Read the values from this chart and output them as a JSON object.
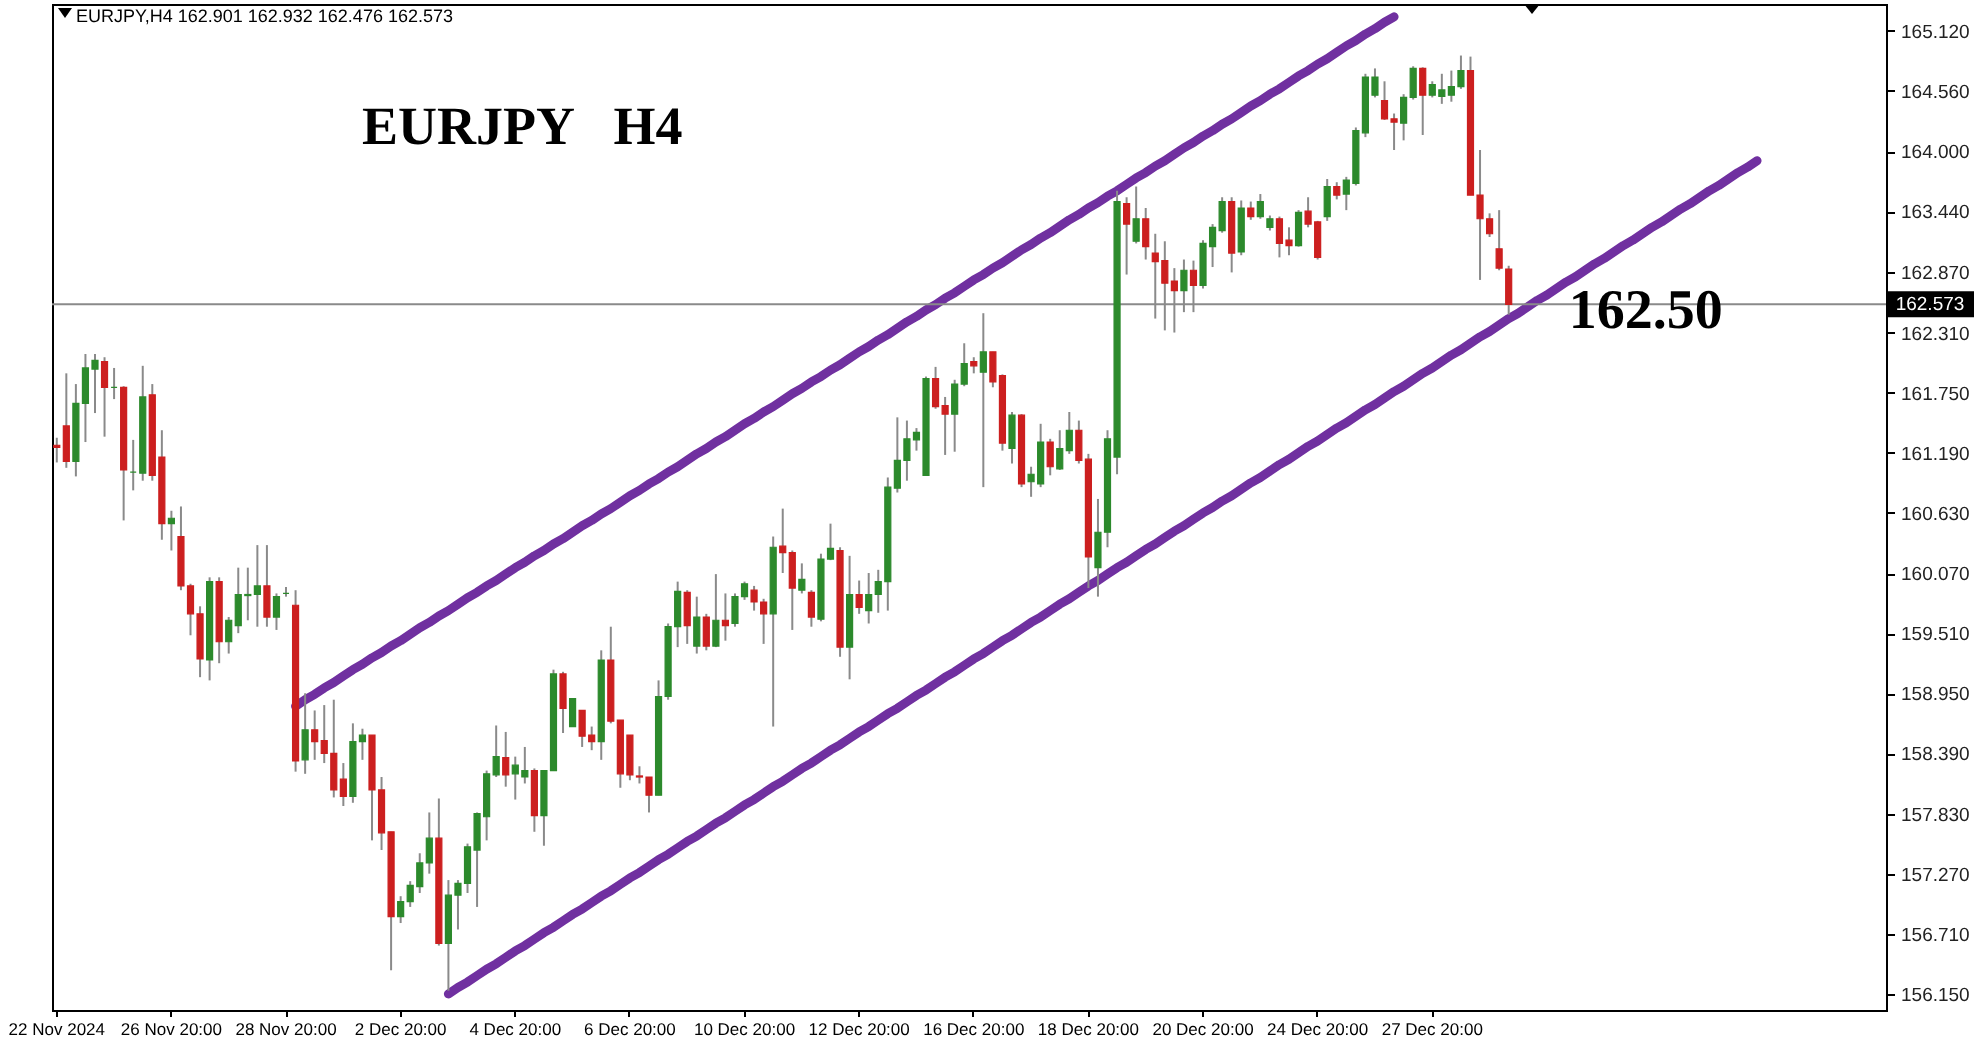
{
  "chart_data": {
    "type": "candlestick",
    "title": "EURJPY   H4",
    "annotations": [
      "EURJPY,H4 162.901 162.932 162.476 162.573",
      {
        "text": "162.50",
        "y": 162.5
      }
    ],
    "categories": [
      "22 Nov 2024",
      null,
      null,
      null,
      null,
      null,
      null,
      null,
      null,
      null,
      null,
      null,
      "26 Nov 20:00",
      null,
      null,
      null,
      null,
      null,
      null,
      null,
      null,
      null,
      null,
      null,
      "28 Nov 20:00",
      null,
      null,
      null,
      null,
      null,
      null,
      null,
      null,
      null,
      null,
      null,
      "2 Dec 20:00",
      null,
      null,
      null,
      null,
      null,
      null,
      null,
      null,
      null,
      null,
      null,
      "4 Dec 20:00",
      null,
      null,
      null,
      null,
      null,
      null,
      null,
      null,
      null,
      null,
      null,
      "6 Dec 20:00",
      null,
      null,
      null,
      null,
      null,
      null,
      null,
      null,
      null,
      null,
      null,
      "10 Dec 20:00",
      null,
      null,
      null,
      null,
      null,
      null,
      null,
      null,
      null,
      null,
      null,
      "12 Dec 20:00",
      null,
      null,
      null,
      null,
      null,
      null,
      null,
      null,
      null,
      null,
      null,
      "16 Dec 20:00",
      null,
      null,
      null,
      null,
      null,
      null,
      null,
      null,
      null,
      null,
      null,
      "18 Dec 20:00",
      null,
      null,
      null,
      null,
      null,
      null,
      null,
      null,
      null,
      null,
      null,
      "20 Dec 20:00",
      null,
      null,
      null,
      null,
      null,
      null,
      null,
      null,
      null,
      null,
      null,
      "24 Dec 20:00",
      null,
      null,
      null,
      null,
      null,
      null,
      null,
      null,
      null,
      null,
      null,
      "27 Dec 20:00",
      null,
      null,
      null,
      null,
      null,
      null,
      null,
      null,
      null,
      null,
      null,
      null,
      null,
      null,
      null,
      null,
      null,
      null,
      null,
      null,
      null,
      null,
      null,
      null,
      null,
      null,
      null,
      null,
      null,
      null,
      null,
      null,
      null,
      null,
      null,
      null,
      null,
      null,
      null,
      null,
      null,
      null,
      null,
      null,
      null,
      null,
      null
    ],
    "ohlc": [
      [
        161.26,
        161.33,
        161.1,
        161.24
      ],
      [
        161.44,
        161.93,
        161.05,
        161.11
      ],
      [
        161.11,
        161.83,
        160.97,
        161.65
      ],
      [
        161.65,
        162.11,
        161.29,
        161.98
      ],
      [
        161.97,
        162.11,
        161.56,
        162.05
      ],
      [
        162.04,
        162.08,
        161.34,
        161.8
      ],
      [
        161.8,
        161.98,
        161.69,
        161.8
      ],
      [
        161.8,
        161.81,
        160.56,
        161.03
      ],
      [
        161.01,
        161.31,
        160.84,
        161.01
      ],
      [
        161.0,
        162.0,
        160.93,
        161.71
      ],
      [
        161.73,
        161.83,
        160.93,
        160.98
      ],
      [
        161.15,
        161.4,
        160.38,
        160.53
      ],
      [
        160.53,
        160.65,
        160.28,
        160.58
      ],
      [
        160.41,
        160.69,
        159.91,
        159.95
      ],
      [
        159.95,
        159.97,
        159.49,
        159.69
      ],
      [
        159.69,
        159.76,
        159.1,
        159.27
      ],
      [
        159.26,
        160.03,
        159.07,
        159.99
      ],
      [
        159.99,
        160.03,
        159.23,
        159.43
      ],
      [
        159.43,
        159.66,
        159.32,
        159.63
      ],
      [
        159.58,
        160.12,
        159.51,
        159.87
      ],
      [
        159.86,
        160.12,
        159.63,
        159.87
      ],
      [
        159.87,
        160.33,
        159.57,
        159.95
      ],
      [
        159.95,
        160.33,
        159.57,
        159.66
      ],
      [
        159.66,
        159.88,
        159.54,
        159.85
      ],
      [
        159.88,
        159.94,
        159.85,
        159.88
      ],
      [
        159.77,
        159.91,
        158.22,
        158.32
      ],
      [
        158.33,
        158.95,
        158.2,
        158.61
      ],
      [
        158.61,
        158.79,
        158.33,
        158.5
      ],
      [
        158.51,
        158.84,
        158.3,
        158.39
      ],
      [
        158.39,
        158.89,
        157.98,
        158.05
      ],
      [
        158.15,
        158.3,
        157.9,
        157.99
      ],
      [
        157.99,
        158.67,
        157.93,
        158.5
      ],
      [
        158.5,
        158.62,
        158.33,
        158.56
      ],
      [
        158.56,
        158.56,
        157.58,
        158.05
      ],
      [
        158.05,
        158.17,
        157.49,
        157.65
      ],
      [
        157.66,
        157.66,
        156.37,
        156.87
      ],
      [
        156.87,
        157.06,
        156.81,
        157.01
      ],
      [
        157.01,
        157.2,
        156.96,
        157.16
      ],
      [
        157.15,
        157.46,
        157.09,
        157.37
      ],
      [
        157.37,
        157.84,
        157.27,
        157.6
      ],
      [
        157.6,
        157.97,
        156.6,
        156.62
      ],
      [
        156.62,
        157.21,
        156.18,
        157.07
      ],
      [
        157.07,
        157.21,
        156.75,
        157.18
      ],
      [
        157.18,
        157.55,
        157.09,
        157.52
      ],
      [
        157.49,
        157.84,
        156.96,
        157.83
      ],
      [
        157.8,
        158.23,
        157.58,
        158.2
      ],
      [
        158.19,
        158.65,
        158.17,
        158.36
      ],
      [
        158.35,
        158.59,
        158.08,
        158.19
      ],
      [
        158.2,
        158.36,
        157.96,
        158.28
      ],
      [
        158.17,
        158.45,
        158.11,
        158.23
      ],
      [
        158.23,
        158.25,
        157.66,
        157.81
      ],
      [
        157.81,
        158.23,
        157.53,
        158.23
      ],
      [
        158.23,
        159.17,
        158.23,
        159.13
      ],
      [
        159.13,
        159.15,
        158.58,
        158.81
      ],
      [
        158.64,
        158.9,
        158.64,
        158.9
      ],
      [
        158.79,
        158.79,
        158.45,
        158.55
      ],
      [
        158.56,
        158.64,
        158.42,
        158.5
      ],
      [
        158.5,
        159.35,
        158.33,
        159.26
      ],
      [
        159.26,
        159.57,
        158.67,
        158.69
      ],
      [
        158.7,
        158.7,
        158.07,
        158.2
      ],
      [
        158.56,
        158.56,
        158.14,
        158.19
      ],
      [
        158.18,
        158.27,
        158.11,
        158.17
      ],
      [
        158.17,
        158.17,
        157.84,
        158.0
      ],
      [
        158.0,
        159.07,
        158.0,
        158.92
      ],
      [
        158.92,
        159.6,
        158.89,
        159.57
      ],
      [
        159.57,
        159.99,
        159.38,
        159.9
      ],
      [
        159.89,
        159.91,
        159.41,
        159.58
      ],
      [
        159.39,
        159.85,
        159.32,
        159.66
      ],
      [
        159.66,
        159.69,
        159.35,
        159.39
      ],
      [
        159.39,
        160.06,
        159.38,
        159.63
      ],
      [
        159.63,
        159.88,
        159.44,
        159.58
      ],
      [
        159.6,
        159.88,
        159.57,
        159.85
      ],
      [
        159.85,
        159.99,
        159.82,
        159.97
      ],
      [
        159.91,
        159.95,
        159.72,
        159.8
      ],
      [
        159.8,
        159.83,
        159.41,
        159.69
      ],
      [
        159.69,
        160.41,
        158.64,
        160.31
      ],
      [
        160.32,
        160.67,
        160.07,
        160.26
      ],
      [
        160.26,
        160.28,
        159.54,
        159.93
      ],
      [
        159.91,
        160.16,
        159.88,
        160.01
      ],
      [
        159.89,
        159.91,
        159.57,
        159.66
      ],
      [
        159.64,
        160.25,
        159.62,
        160.2
      ],
      [
        160.2,
        160.53,
        160.19,
        160.3
      ],
      [
        160.28,
        160.31,
        159.29,
        159.38
      ],
      [
        159.38,
        160.23,
        159.08,
        159.87
      ],
      [
        159.87,
        160.0,
        159.69,
        159.75
      ],
      [
        159.72,
        160.07,
        159.6,
        159.87
      ],
      [
        159.87,
        160.1,
        159.7,
        159.99
      ],
      [
        159.99,
        160.96,
        159.72,
        160.87
      ],
      [
        160.86,
        161.52,
        160.82,
        161.12
      ],
      [
        161.12,
        161.49,
        160.93,
        161.32
      ],
      [
        161.31,
        161.42,
        161.21,
        161.38
      ],
      [
        160.98,
        161.9,
        160.98,
        161.88
      ],
      [
        161.88,
        161.99,
        161.6,
        161.62
      ],
      [
        161.63,
        161.71,
        161.17,
        161.55
      ],
      [
        161.55,
        161.87,
        161.2,
        161.83
      ],
      [
        161.83,
        162.21,
        161.81,
        162.02
      ],
      [
        162.04,
        162.08,
        161.93,
        162.0
      ],
      [
        161.94,
        162.49,
        160.87,
        162.13
      ],
      [
        162.13,
        162.13,
        161.8,
        161.85
      ],
      [
        161.91,
        161.92,
        161.21,
        161.28
      ],
      [
        161.23,
        161.57,
        161.09,
        161.54
      ],
      [
        161.54,
        161.55,
        160.87,
        160.9
      ],
      [
        160.92,
        161.06,
        160.78,
        160.99
      ],
      [
        160.9,
        161.46,
        160.87,
        161.29
      ],
      [
        161.29,
        161.32,
        160.98,
        161.06
      ],
      [
        161.04,
        161.4,
        161.03,
        161.23
      ],
      [
        161.21,
        161.57,
        161.18,
        161.4
      ],
      [
        161.4,
        161.49,
        161.09,
        161.12
      ],
      [
        161.13,
        161.18,
        159.93,
        160.22
      ],
      [
        160.12,
        160.76,
        159.85,
        160.45
      ],
      [
        160.45,
        161.4,
        160.31,
        161.32
      ],
      [
        161.15,
        163.63,
        160.99,
        163.53
      ],
      [
        163.51,
        163.57,
        162.85,
        163.32
      ],
      [
        163.16,
        163.67,
        163.14,
        163.37
      ],
      [
        163.37,
        163.47,
        162.99,
        163.11
      ],
      [
        163.05,
        163.23,
        162.44,
        162.97
      ],
      [
        162.98,
        163.16,
        162.33,
        162.77
      ],
      [
        162.79,
        162.91,
        162.31,
        162.7
      ],
      [
        162.7,
        162.99,
        162.5,
        162.89
      ],
      [
        162.89,
        162.98,
        162.5,
        162.75
      ],
      [
        162.75,
        163.17,
        162.72,
        163.14
      ],
      [
        163.11,
        163.32,
        162.92,
        163.29
      ],
      [
        163.26,
        163.57,
        163.24,
        163.53
      ],
      [
        163.53,
        163.57,
        162.87,
        163.05
      ],
      [
        163.06,
        163.54,
        163.03,
        163.47
      ],
      [
        163.47,
        163.53,
        163.36,
        163.39
      ],
      [
        163.39,
        163.6,
        163.37,
        163.53
      ],
      [
        163.29,
        163.4,
        163.26,
        163.37
      ],
      [
        163.37,
        163.39,
        163.01,
        163.14
      ],
      [
        163.17,
        163.29,
        163.03,
        163.12
      ],
      [
        163.12,
        163.45,
        163.11,
        163.43
      ],
      [
        163.44,
        163.57,
        163.29,
        163.32
      ],
      [
        163.34,
        163.35,
        162.99,
        163.01
      ],
      [
        163.39,
        163.74,
        163.35,
        163.67
      ],
      [
        163.67,
        163.71,
        163.55,
        163.59
      ],
      [
        163.6,
        163.76,
        163.45,
        163.73
      ],
      [
        163.7,
        164.22,
        163.68,
        164.19
      ],
      [
        164.17,
        164.72,
        164.13,
        164.69
      ],
      [
        164.52,
        164.77,
        164.5,
        164.69
      ],
      [
        164.47,
        164.65,
        164.29,
        164.3
      ],
      [
        164.3,
        164.35,
        164.01,
        164.27
      ],
      [
        164.26,
        164.53,
        164.1,
        164.5
      ],
      [
        164.5,
        164.79,
        164.48,
        164.77
      ],
      [
        164.77,
        164.78,
        164.15,
        164.52
      ],
      [
        164.52,
        164.65,
        164.5,
        164.62
      ],
      [
        164.51,
        164.72,
        164.44,
        164.57
      ],
      [
        164.52,
        164.75,
        164.46,
        164.6
      ],
      [
        164.6,
        164.89,
        164.58,
        164.75
      ],
      [
        164.75,
        164.88,
        163.59,
        163.59
      ],
      [
        163.59,
        164.01,
        162.8,
        163.37
      ],
      [
        163.37,
        163.42,
        163.2,
        163.23
      ],
      [
        163.09,
        163.45,
        162.89,
        162.91
      ],
      [
        162.901,
        162.932,
        162.476,
        162.573
      ],
      null,
      null,
      null,
      null,
      null,
      null,
      null,
      null,
      null,
      null,
      null,
      null,
      null,
      null,
      null,
      null,
      null,
      null,
      null,
      null,
      null,
      null,
      null,
      null,
      null,
      null,
      null,
      null,
      null,
      null,
      null,
      null,
      null,
      null,
      null,
      null,
      null,
      null,
      null
    ],
    "colors": [
      "#cc1f1f",
      "#cc1f1f",
      "#2c8a2c",
      "#2c8a2c",
      "#2c8a2c",
      "#cc1f1f",
      "#2c8a2c",
      "#cc1f1f",
      "#2c8a2c",
      "#2c8a2c",
      "#cc1f1f",
      "#cc1f1f",
      "#2c8a2c",
      "#cc1f1f",
      "#cc1f1f",
      "#cc1f1f",
      "#2c8a2c",
      "#cc1f1f",
      "#2c8a2c",
      "#2c8a2c",
      "#2c8a2c",
      "#2c8a2c",
      "#cc1f1f",
      "#2c8a2c",
      "#2c8a2c",
      "#cc1f1f",
      "#2c8a2c",
      "#cc1f1f",
      "#cc1f1f",
      "#cc1f1f",
      "#cc1f1f",
      "#2c8a2c",
      "#2c8a2c",
      "#cc1f1f",
      "#cc1f1f",
      "#cc1f1f",
      "#2c8a2c",
      "#2c8a2c",
      "#2c8a2c",
      "#2c8a2c",
      "#cc1f1f",
      "#2c8a2c",
      "#2c8a2c",
      "#2c8a2c",
      "#2c8a2c",
      "#2c8a2c",
      "#2c8a2c",
      "#cc1f1f",
      "#2c8a2c",
      "#2c8a2c",
      "#cc1f1f",
      "#2c8a2c",
      "#2c8a2c",
      "#cc1f1f",
      "#2c8a2c",
      "#cc1f1f",
      "#cc1f1f",
      "#2c8a2c",
      "#cc1f1f",
      "#cc1f1f",
      "#cc1f1f",
      "#cc1f1f",
      "#cc1f1f",
      "#2c8a2c",
      "#2c8a2c",
      "#2c8a2c",
      "#cc1f1f",
      "#2c8a2c",
      "#cc1f1f",
      "#2c8a2c",
      "#cc1f1f",
      "#2c8a2c",
      "#2c8a2c",
      "#cc1f1f",
      "#cc1f1f",
      "#2c8a2c",
      "#cc1f1f",
      "#cc1f1f",
      "#2c8a2c",
      "#cc1f1f",
      "#2c8a2c",
      "#2c8a2c",
      "#cc1f1f",
      "#2c8a2c",
      "#cc1f1f",
      "#2c8a2c",
      "#2c8a2c",
      "#2c8a2c",
      "#2c8a2c",
      "#2c8a2c",
      "#2c8a2c",
      "#2c8a2c",
      "#cc1f1f",
      "#cc1f1f",
      "#2c8a2c",
      "#2c8a2c",
      "#cc1f1f",
      "#2c8a2c",
      "#cc1f1f",
      "#cc1f1f",
      "#2c8a2c",
      "#cc1f1f",
      "#2c8a2c",
      "#2c8a2c",
      "#cc1f1f",
      "#2c8a2c",
      "#2c8a2c",
      "#cc1f1f",
      "#cc1f1f",
      "#2c8a2c",
      "#2c8a2c",
      "#2c8a2c",
      "#cc1f1f",
      "#2c8a2c",
      "#cc1f1f",
      "#cc1f1f",
      "#cc1f1f",
      "#cc1f1f",
      "#2c8a2c",
      "#cc1f1f",
      "#2c8a2c",
      "#2c8a2c",
      "#2c8a2c",
      "#cc1f1f",
      "#2c8a2c",
      "#cc1f1f",
      "#2c8a2c",
      "#2c8a2c",
      "#cc1f1f",
      "#cc1f1f",
      "#2c8a2c",
      "#cc1f1f",
      "#cc1f1f",
      "#2c8a2c",
      "#cc1f1f",
      "#2c8a2c",
      "#2c8a2c",
      "#2c8a2c",
      "#2c8a2c",
      "#cc1f1f",
      "#cc1f1f",
      "#2c8a2c",
      "#2c8a2c",
      "#cc1f1f",
      "#2c8a2c",
      "#2c8a2c",
      "#2c8a2c",
      "#2c8a2c",
      "#cc1f1f",
      "#cc1f1f",
      "#cc1f1f",
      "#cc1f1f",
      "#cc1f1f",
      null,
      null,
      null,
      null,
      null,
      null,
      null,
      null,
      null,
      null,
      null,
      null,
      null,
      null,
      null,
      null,
      null,
      null,
      null,
      null,
      null,
      null,
      null,
      null,
      null,
      null,
      null,
      null,
      null,
      null,
      null,
      null,
      null,
      null,
      null,
      null,
      null,
      null,
      null
    ],
    "series": [
      {
        "type": "line",
        "color": "#7030a0",
        "values": [
          null,
          null,
          null,
          null,
          null,
          null,
          null,
          null,
          null,
          null,
          null,
          null,
          null,
          null,
          null,
          null,
          null,
          null,
          null,
          null,
          null,
          null,
          null,
          null,
          null,
          158.83,
          158.89,
          158.94,
          159.0,
          159.05,
          159.11,
          159.17,
          159.22,
          159.28,
          159.33,
          159.39,
          159.44,
          159.5,
          159.56,
          159.61,
          159.67,
          159.72,
          159.78,
          159.84,
          159.89,
          159.95,
          160.0,
          160.06,
          160.12,
          160.17,
          160.23,
          160.28,
          160.34,
          160.39,
          160.45,
          160.51,
          160.56,
          160.62,
          160.67,
          160.73,
          160.79,
          160.84,
          160.9,
          160.95,
          161.01,
          161.06,
          161.12,
          161.18,
          161.23,
          161.29,
          161.34,
          161.4,
          161.46,
          161.51,
          161.57,
          161.62,
          161.68,
          161.74,
          161.79,
          161.85,
          161.9,
          161.96,
          162.01,
          162.07,
          162.13,
          162.18,
          162.24,
          162.29,
          162.35,
          162.41,
          162.46,
          162.52,
          162.57,
          162.63,
          162.68,
          162.74,
          162.8,
          162.85,
          162.91,
          162.96,
          163.02,
          163.08,
          163.13,
          163.19,
          163.24,
          163.3,
          163.36,
          163.41,
          163.47,
          163.52,
          163.58,
          163.63,
          163.69,
          163.75,
          163.8,
          163.86,
          163.91,
          163.97,
          164.03,
          164.08,
          164.14,
          164.19,
          164.25,
          164.3,
          164.36,
          164.42,
          164.47,
          164.53,
          164.58,
          164.64,
          164.7,
          164.75,
          164.81,
          164.86,
          164.92,
          164.98,
          165.03,
          165.09,
          165.14,
          165.2,
          165.25,
          null,
          null,
          null,
          null,
          null,
          null,
          null,
          null,
          null,
          null,
          null,
          null,
          null,
          null,
          null,
          null,
          null,
          null,
          null,
          null,
          null,
          null,
          null,
          null,
          null,
          null,
          null,
          null,
          null,
          null,
          null,
          null,
          null,
          null,
          null,
          null,
          null,
          null,
          null,
          null,
          null,
          null,
          null,
          null,
          null,
          null,
          null,
          null,
          null,
          null,
          null
        ]
      },
      {
        "type": "line",
        "color": "#7030a0",
        "values": [
          null,
          null,
          null,
          null,
          null,
          null,
          null,
          null,
          null,
          null,
          null,
          null,
          null,
          null,
          null,
          null,
          null,
          null,
          null,
          null,
          null,
          null,
          null,
          null,
          null,
          null,
          null,
          null,
          null,
          null,
          null,
          null,
          null,
          null,
          null,
          null,
          null,
          null,
          null,
          null,
          null,
          156.15,
          156.21,
          156.26,
          156.32,
          156.38,
          156.43,
          156.49,
          156.55,
          156.6,
          156.66,
          156.72,
          156.77,
          156.83,
          156.89,
          156.94,
          157.0,
          157.06,
          157.11,
          157.17,
          157.23,
          157.28,
          157.34,
          157.4,
          157.45,
          157.51,
          157.57,
          157.62,
          157.68,
          157.74,
          157.79,
          157.85,
          157.91,
          157.96,
          158.02,
          158.08,
          158.13,
          158.19,
          158.25,
          158.3,
          158.36,
          158.42,
          158.47,
          158.53,
          158.59,
          158.64,
          158.7,
          158.76,
          158.81,
          158.87,
          158.93,
          158.98,
          159.04,
          159.1,
          159.15,
          159.21,
          159.27,
          159.32,
          159.38,
          159.44,
          159.49,
          159.55,
          159.61,
          159.66,
          159.72,
          159.78,
          159.83,
          159.89,
          159.95,
          160.0,
          160.06,
          160.12,
          160.17,
          160.23,
          160.29,
          160.34,
          160.4,
          160.46,
          160.51,
          160.57,
          160.63,
          160.68,
          160.74,
          160.79,
          160.85,
          160.91,
          160.96,
          161.02,
          161.08,
          161.13,
          161.19,
          161.25,
          161.3,
          161.36,
          161.42,
          161.47,
          161.53,
          161.59,
          161.64,
          161.7,
          161.76,
          161.81,
          161.87,
          161.93,
          161.98,
          162.04,
          162.1,
          162.15,
          162.21,
          162.27,
          162.32,
          162.38,
          162.44,
          162.49,
          162.55,
          162.61,
          162.66,
          162.72,
          162.78,
          162.83,
          162.89,
          162.95,
          163.0,
          163.06,
          163.12,
          163.17,
          163.23,
          163.29,
          163.34,
          163.4,
          163.46,
          163.51,
          163.57,
          163.63,
          163.68,
          163.74,
          163.8,
          163.85,
          163.91,
          null,
          null,
          null,
          null,
          null,
          null,
          null,
          null,
          null,
          null,
          null,
          null,
          null
        ]
      }
    ],
    "ylim": [
      156.0,
      165.37
    ],
    "yticks": [
      {
        "value": 156.15,
        "label": "156.150"
      },
      {
        "value": 156.71,
        "label": "156.710"
      },
      {
        "value": 157.27,
        "label": "157.270"
      },
      {
        "value": 157.83,
        "label": "157.830"
      },
      {
        "value": 158.39,
        "label": "158.390"
      },
      {
        "value": 158.95,
        "label": "158.950"
      },
      {
        "value": 159.51,
        "label": "159.510"
      },
      {
        "value": 160.07,
        "label": "160.070"
      },
      {
        "value": 160.63,
        "label": "160.630"
      },
      {
        "value": 161.19,
        "label": "161.190"
      },
      {
        "value": 161.75,
        "label": "161.750"
      },
      {
        "value": 162.31,
        "label": "162.310"
      },
      {
        "value": 162.87,
        "label": "162.870"
      },
      {
        "value": 163.44,
        "label": "163.440"
      },
      {
        "value": 164.0,
        "label": "164.000"
      },
      {
        "value": 164.56,
        "label": "164.560"
      },
      {
        "value": 165.12,
        "label": "165.120"
      }
    ],
    "ref_lines": [
      {
        "axis": "y",
        "value": 162.573,
        "label": "162.573",
        "color": "#8a8a8a"
      }
    ]
  }
}
